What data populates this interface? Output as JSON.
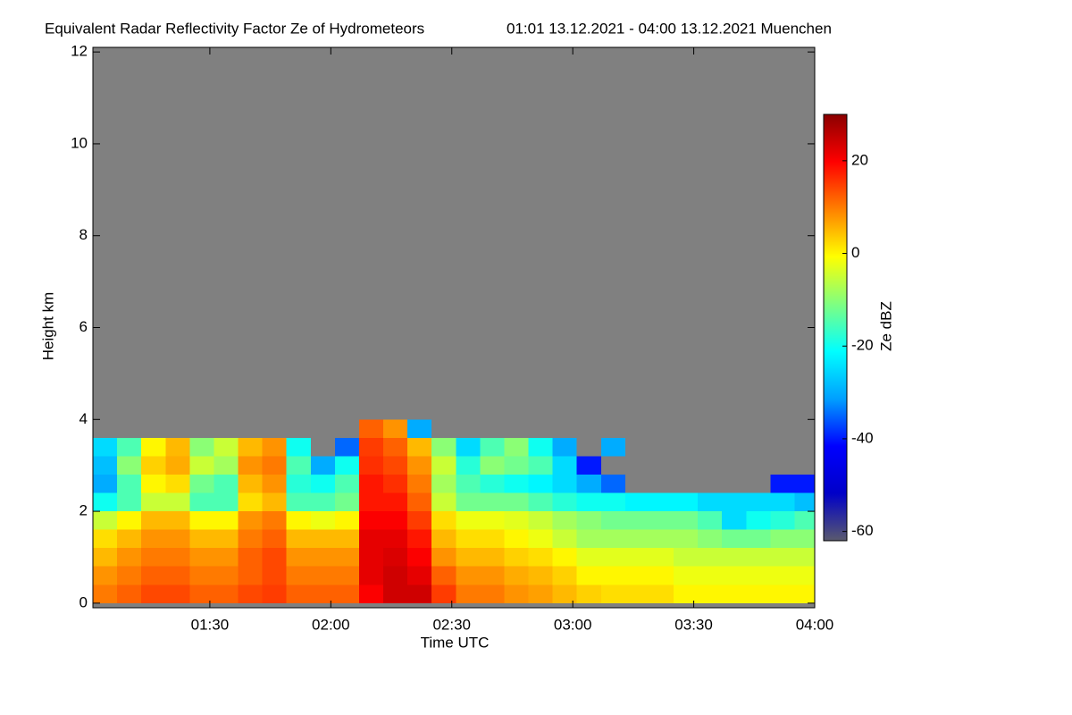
{
  "chart_data": {
    "type": "heatmap",
    "title": "Equivalent Radar Reflectivity Factor Ze of Hydrometeors",
    "subtitle": "01:01 13.12.2021 - 04:00 13.12.2021 Muenchen",
    "x_label": "Time UTC",
    "y_label": "Height km",
    "colorbar_label": "Ze dBZ",
    "xlim": [
      61,
      240
    ],
    "xticks": [
      {
        "value": 90,
        "label": "01:30"
      },
      {
        "value": 120,
        "label": "02:00"
      },
      {
        "value": 150,
        "label": "02:30"
      },
      {
        "value": 180,
        "label": "03:00"
      },
      {
        "value": 210,
        "label": "03:30"
      },
      {
        "value": 240,
        "label": "04:00"
      }
    ],
    "ylim": [
      -0.1,
      12.1
    ],
    "yticks": [
      0,
      2,
      4,
      6,
      8,
      10,
      12
    ],
    "zlim": [
      -62,
      30
    ],
    "zticks": [
      20,
      0,
      -20,
      -40,
      -60
    ],
    "colormap": [
      "#5a5a6e",
      "#0000c8",
      "#0000ff",
      "#00a0ff",
      "#00ffff",
      "#80ff80",
      "#ffff00",
      "#ff8000",
      "#ff0000",
      "#8b0000"
    ],
    "missing_color": "#808080",
    "x": [
      64,
      70,
      76,
      82,
      88,
      94,
      100,
      106,
      112,
      118,
      124,
      130,
      136,
      142,
      148,
      154,
      160,
      166,
      172,
      178,
      184,
      190,
      196,
      202,
      208,
      214,
      220,
      226,
      232,
      238
    ],
    "y": [
      0.2,
      0.6,
      1.0,
      1.4,
      1.8,
      2.2,
      2.6,
      3.0,
      3.4,
      3.8
    ],
    "z": [
      [
        10,
        12,
        14,
        14,
        12,
        12,
        14,
        15,
        12,
        12,
        12,
        20,
        24,
        24,
        15,
        10,
        10,
        8,
        7,
        5,
        3,
        2,
        2,
        2,
        0,
        0,
        0,
        0,
        0,
        0
      ],
      [
        8,
        10,
        12,
        12,
        10,
        10,
        12,
        14,
        10,
        10,
        10,
        22,
        24,
        22,
        12,
        8,
        8,
        6,
        5,
        3,
        0,
        0,
        0,
        0,
        -2,
        -2,
        -2,
        -2,
        -2,
        -2
      ],
      [
        5,
        8,
        10,
        10,
        8,
        8,
        12,
        14,
        8,
        8,
        8,
        22,
        23,
        20,
        8,
        5,
        5,
        3,
        2,
        0,
        -3,
        -3,
        -3,
        -3,
        -5,
        -5,
        -5,
        -5,
        -5,
        -5
      ],
      [
        2,
        5,
        8,
        8,
        5,
        5,
        10,
        12,
        5,
        5,
        5,
        22,
        22,
        18,
        5,
        2,
        2,
        0,
        -2,
        -5,
        -8,
        -8,
        -8,
        -8,
        -8,
        -10,
        -12,
        -12,
        -10,
        -10
      ],
      [
        -5,
        0,
        5,
        5,
        0,
        0,
        8,
        10,
        0,
        -2,
        0,
        20,
        20,
        15,
        2,
        -2,
        -2,
        -3,
        -5,
        -8,
        -10,
        -12,
        -12,
        -12,
        -12,
        -15,
        -25,
        -20,
        -18,
        -15
      ],
      [
        -20,
        -15,
        -5,
        -5,
        -15,
        -15,
        2,
        5,
        -15,
        -15,
        -12,
        18,
        18,
        12,
        -5,
        -12,
        -12,
        -12,
        -15,
        -18,
        -20,
        -20,
        -22,
        -22,
        -22,
        -25,
        -25,
        -25,
        -25,
        -28
      ],
      [
        -30,
        -15,
        0,
        2,
        -12,
        -15,
        5,
        8,
        -18,
        -20,
        -15,
        18,
        16,
        10,
        -8,
        -15,
        -18,
        -20,
        -22,
        -25,
        -30,
        -35,
        null,
        null,
        null,
        null,
        null,
        null,
        -40,
        -40
      ],
      [
        -28,
        -10,
        3,
        6,
        -5,
        -8,
        8,
        10,
        -15,
        -30,
        -20,
        16,
        14,
        8,
        -5,
        -18,
        -10,
        -12,
        -15,
        -25,
        -40,
        null,
        null,
        null,
        null,
        null,
        null,
        null,
        null,
        null
      ],
      [
        -25,
        -15,
        0,
        5,
        -10,
        -5,
        5,
        8,
        -20,
        null,
        -35,
        15,
        12,
        5,
        -10,
        -25,
        -15,
        -10,
        -20,
        -30,
        null,
        -30,
        null,
        null,
        null,
        null,
        null,
        null,
        null,
        null
      ],
      [
        null,
        null,
        null,
        null,
        null,
        null,
        null,
        null,
        null,
        null,
        null,
        12,
        8,
        -30,
        null,
        null,
        null,
        null,
        null,
        null,
        null,
        null,
        null,
        null,
        null,
        null,
        null,
        null,
        null,
        null
      ]
    ]
  }
}
